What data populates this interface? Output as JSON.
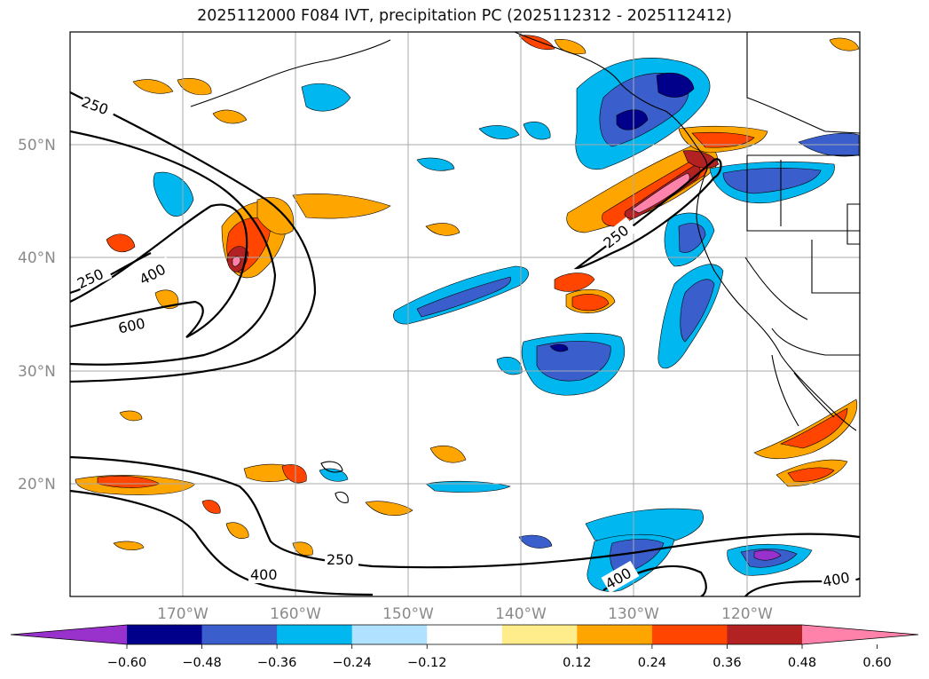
{
  "title": "2025112000 F084 IVT, precipitation PC (2025112312 - 2025112412)",
  "lat_labels": [
    "50°N",
    "40°N",
    "30°N",
    "20°N"
  ],
  "lon_labels": [
    "170°W",
    "160°W",
    "150°W",
    "140°W",
    "130°W",
    "120°W"
  ],
  "contour_labels": [
    "250",
    "250",
    "400",
    "600",
    "250",
    "250",
    "400",
    "400",
    "400"
  ],
  "colorbar": {
    "ticks": [
      "−0.60",
      "−0.48",
      "−0.36",
      "−0.24",
      "−0.12",
      "0.12",
      "0.24",
      "0.36",
      "0.48",
      "0.60"
    ],
    "colors": [
      "#9932cc",
      "#00008b",
      "#3a5fcd",
      "#00b7f0",
      "#b0e2ff",
      "#ffffff",
      "#ffec8b",
      "#ffa500",
      "#ff4500",
      "#b22222",
      "#ff82ab"
    ]
  }
}
